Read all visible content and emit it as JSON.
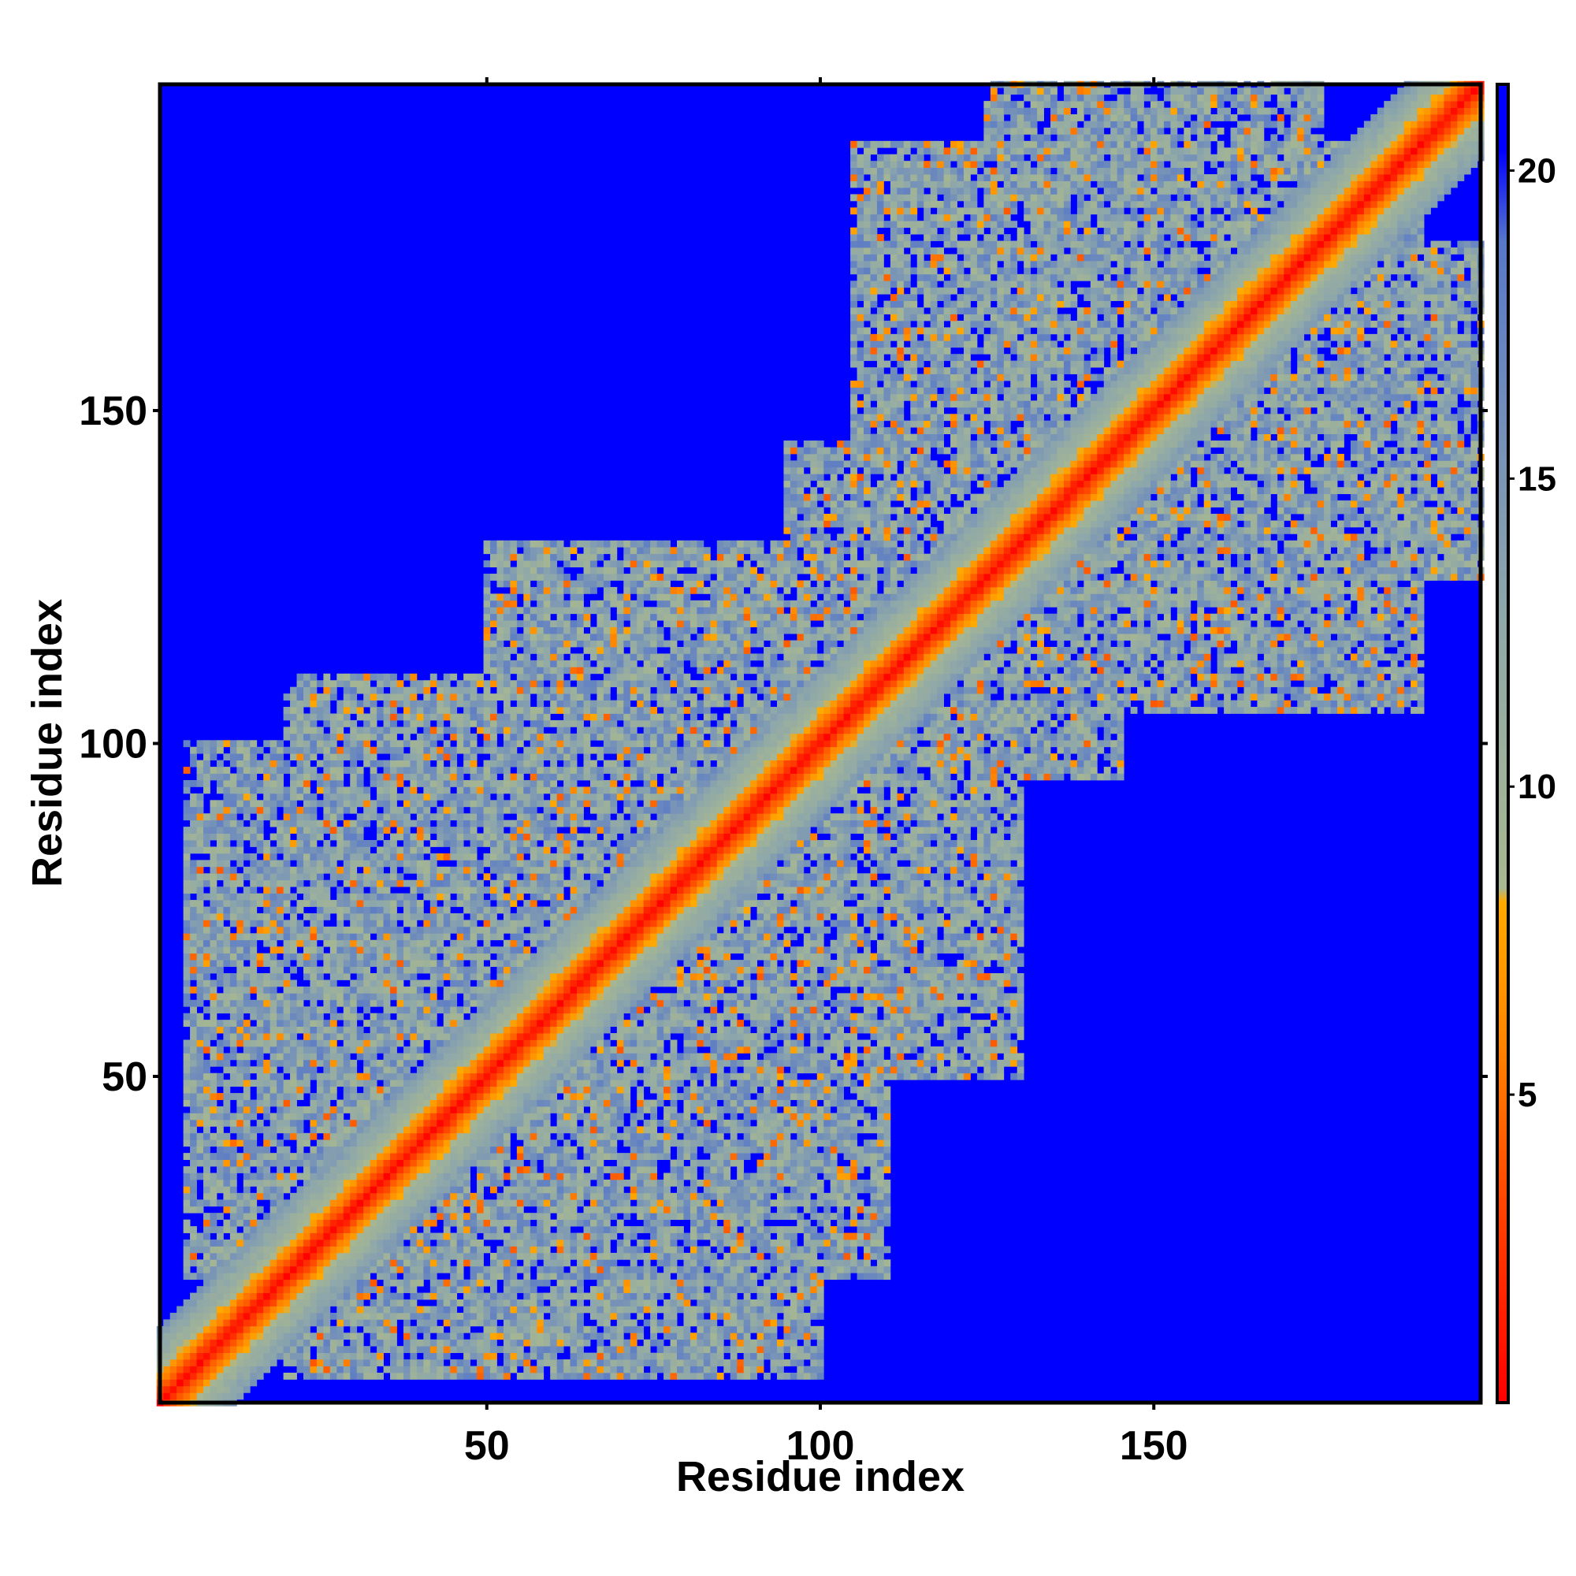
{
  "chart_data": {
    "type": "heatmap",
    "title": "",
    "xlabel": "Residue index",
    "ylabel": "Residue index",
    "xlim": [
      1,
      199
    ],
    "ylim": [
      1,
      199
    ],
    "x_ticks": [
      50,
      100,
      150
    ],
    "y_ticks": [
      50,
      100,
      150
    ],
    "colorbar": {
      "ticks": [
        5,
        10,
        15,
        20
      ],
      "range": [
        0,
        21.4
      ],
      "colors": [
        "#ff0000",
        "#ff4400",
        "#ff8800",
        "#ffaa00",
        "#a8b890",
        "#8ea7aa",
        "#5878c8",
        "#0000ff"
      ],
      "stops": [
        0,
        0.15,
        0.28,
        0.38,
        0.39,
        0.6,
        0.88,
        0.95
      ]
    },
    "description_values": {
      "diagonal_distance": 0,
      "background_distance": 21
    },
    "contact_regions": [
      {
        "x": [
          1,
          199
        ],
        "y": [
          1,
          199
        ],
        "pattern": "diagonal band, distance rises from 0 on the diagonal"
      },
      {
        "x": [
          5,
          20
        ],
        "y": [
          55,
          100
        ]
      },
      {
        "x": [
          20,
          70
        ],
        "y": [
          5,
          60
        ]
      },
      {
        "x": [
          50,
          110
        ],
        "y": [
          20,
          75
        ]
      },
      {
        "x": [
          50,
          95
        ],
        "y": [
          75,
          130
        ]
      },
      {
        "x": [
          75,
          130
        ],
        "y": [
          60,
          120
        ]
      },
      {
        "x": [
          95,
          140
        ],
        "y": [
          95,
          145
        ]
      },
      {
        "x": [
          110,
          150
        ],
        "y": [
          130,
          170
        ]
      },
      {
        "x": [
          125,
          190
        ],
        "y": [
          105,
          185
        ]
      },
      {
        "x": [
          135,
          175
        ],
        "y": [
          175,
          199
        ]
      },
      {
        "x": [
          150,
          199
        ],
        "y": [
          125,
          170
        ]
      }
    ]
  },
  "colors": {
    "background_blue": "#0000ff",
    "diagonal_red": "#ff0000",
    "contact_orange": "#ff8800",
    "mid_green": "#a8b890",
    "far_slate": "#5878c8"
  }
}
